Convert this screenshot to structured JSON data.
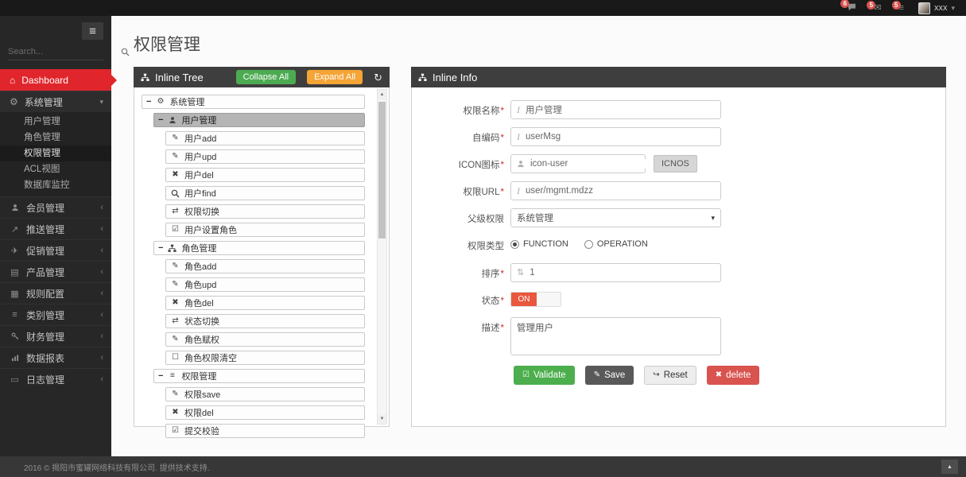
{
  "topbar": {
    "notifications": [
      {
        "icon": "bubble",
        "count": "6"
      },
      {
        "icon": "envelope",
        "count": "5"
      },
      {
        "icon": "tasks",
        "count": "5"
      }
    ],
    "username": "xxx"
  },
  "sidebar": {
    "search_placeholder": "Search...",
    "dashboard": {
      "icon": "home",
      "label": "Dashboard"
    },
    "system_group": {
      "icon": "gears",
      "label": "系统管理"
    },
    "system_children": [
      {
        "label": "用户管理",
        "active": false
      },
      {
        "label": "角色管理",
        "active": false
      },
      {
        "label": "权限管理",
        "active": true
      },
      {
        "label": "ACL视图",
        "active": false
      },
      {
        "label": "数据库监控",
        "active": false
      }
    ],
    "items": [
      {
        "icon": "user",
        "label": "会员管理"
      },
      {
        "icon": "push",
        "label": "推送管理"
      },
      {
        "icon": "promo",
        "label": "促销管理"
      },
      {
        "icon": "product",
        "label": "产品管理"
      },
      {
        "icon": "rules",
        "label": "规则配置"
      },
      {
        "icon": "list",
        "label": "类别管理"
      },
      {
        "icon": "key",
        "label": "财务管理"
      },
      {
        "icon": "chart",
        "label": "数据报表"
      },
      {
        "icon": "log",
        "label": "日志管理"
      }
    ]
  },
  "page": {
    "title": "权限管理"
  },
  "tree_panel": {
    "title": "Inline Tree",
    "collapse_btn": "Collapse All",
    "expand_btn": "Expand All",
    "rows": [
      {
        "level": 0,
        "group": true,
        "icon": "gears",
        "label": "系统管理",
        "selected": false
      },
      {
        "level": 1,
        "group": true,
        "icon": "user",
        "label": "用户管理",
        "selected": true
      },
      {
        "level": 2,
        "group": false,
        "icon": "pencil",
        "label": "用户add",
        "selected": false
      },
      {
        "level": 2,
        "group": false,
        "icon": "edit",
        "label": "用户upd",
        "selected": false
      },
      {
        "level": 2,
        "group": false,
        "icon": "close",
        "label": "用户del",
        "selected": false
      },
      {
        "level": 2,
        "group": false,
        "icon": "search",
        "label": "用户find",
        "selected": false
      },
      {
        "level": 2,
        "group": false,
        "icon": "exchange",
        "label": "权限切换",
        "selected": false
      },
      {
        "level": 2,
        "group": false,
        "icon": "check-square",
        "label": "用户设置角色",
        "selected": false
      },
      {
        "level": 1,
        "group": true,
        "icon": "sitemap",
        "label": "角色管理",
        "selected": false
      },
      {
        "level": 2,
        "group": false,
        "icon": "pencil",
        "label": "角色add",
        "selected": false
      },
      {
        "level": 2,
        "group": false,
        "icon": "edit",
        "label": "角色upd",
        "selected": false
      },
      {
        "level": 2,
        "group": false,
        "icon": "close",
        "label": "角色del",
        "selected": false
      },
      {
        "level": 2,
        "group": false,
        "icon": "exchange",
        "label": "状态切换",
        "selected": false
      },
      {
        "level": 2,
        "group": false,
        "icon": "pencil",
        "label": "角色赋权",
        "selected": false
      },
      {
        "level": 2,
        "group": false,
        "icon": "square",
        "label": "角色权限清空",
        "selected": false
      },
      {
        "level": 1,
        "group": true,
        "icon": "list",
        "label": "权限管理",
        "selected": false
      },
      {
        "level": 2,
        "group": false,
        "icon": "pencil",
        "label": "权限save",
        "selected": false
      },
      {
        "level": 2,
        "group": false,
        "icon": "close",
        "label": "权限del",
        "selected": false
      },
      {
        "level": 2,
        "group": false,
        "icon": "check-square",
        "label": "提交校验",
        "selected": false
      }
    ]
  },
  "info_panel": {
    "title": "Inline Info",
    "fields": {
      "name": {
        "label": "权限名称",
        "value": "用户管理"
      },
      "code": {
        "label": "自编码",
        "value": "userMsg"
      },
      "icon": {
        "label": "ICON图标",
        "value": "icon-user",
        "button": "ICNOS"
      },
      "url": {
        "label": "权限URL",
        "value": "user/mgmt.mdzz"
      },
      "parent": {
        "label": "父级权限",
        "value": "系统管理"
      },
      "type": {
        "label": "权限类型",
        "options": [
          "FUNCTION",
          "OPERATION"
        ],
        "selected": "FUNCTION"
      },
      "sort": {
        "label": "排序",
        "value": "1"
      },
      "status": {
        "label": "状态",
        "on_label": "ON"
      },
      "desc": {
        "label": "描述",
        "value": "管理用户"
      }
    },
    "buttons": [
      {
        "icon": "check-square",
        "label": "Validate",
        "style": "green"
      },
      {
        "icon": "pencil",
        "label": "Save",
        "style": "dark"
      },
      {
        "icon": "reset",
        "label": "Reset",
        "style": "light"
      },
      {
        "icon": "close",
        "label": "delete",
        "style": "red"
      }
    ]
  },
  "footer": {
    "text": "2016 © 揭阳市蜜罐网络科技有限公司. 提供技术支持."
  },
  "colors": {
    "accent_red": "#e0262c",
    "badge_red": "#d9534f",
    "green": "#4cae4c",
    "orange": "#f5a436",
    "panel_header": "#3e3e3e",
    "toggle_on": "#e9573f"
  },
  "icons": {
    "hamburger": "≡",
    "search": "svg",
    "home": "⌂",
    "gears": "⚙",
    "caret-down": "▾",
    "caret-left": "‹",
    "user": "svg",
    "push": "↗",
    "promo": "✈",
    "product": "▤",
    "rules": "▦",
    "list": "≡",
    "key": "svg",
    "chart": "svg",
    "log": "▭",
    "pencil": "✎",
    "edit": "✎",
    "close": "✖",
    "exchange": "⇄",
    "check-square": "☑",
    "square": "☐",
    "sitemap": "svg",
    "refresh": "↻",
    "sort": "⇅",
    "envelope": "✉",
    "bubble": "svg",
    "tasks": "≡",
    "reset": "↪",
    "minus": "−",
    "up": "▲"
  }
}
